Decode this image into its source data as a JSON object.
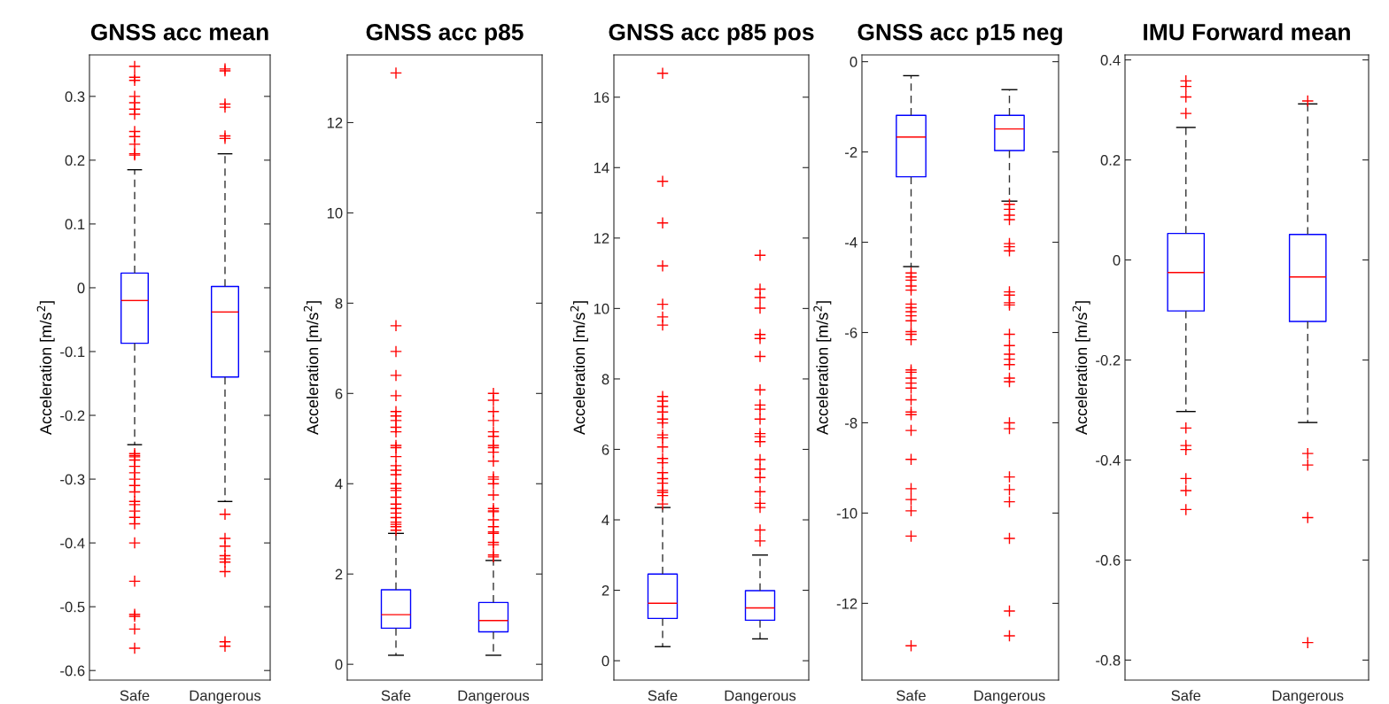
{
  "chart_data": [
    {
      "type": "box",
      "title": "GNSS acc mean",
      "ylabel": "Acceleration [m/s$^{2}$]",
      "categories": [
        "Safe",
        "Dangerous"
      ],
      "ylim": [
        -0.615,
        0.365
      ],
      "yticks": [
        -0.6,
        -0.5,
        -0.4,
        -0.3,
        -0.2,
        -0.1,
        0,
        0.1,
        0.2,
        0.3
      ],
      "marker": "cross",
      "series": [
        {
          "color": "#0000ff",
          "boxes": [
            {
              "low": -0.246,
              "q1": -0.087,
              "median": -0.02,
              "q3": 0.023,
              "high": 0.185,
              "outliers": [
                0.347,
                0.33,
                0.325,
                0.3,
                0.29,
                0.28,
                0.272,
                0.245,
                0.237,
                0.225,
                0.21,
                0.208,
                -0.26,
                -0.263,
                -0.265,
                -0.27,
                -0.28,
                -0.29,
                -0.3,
                -0.31,
                -0.32,
                -0.335,
                -0.34,
                -0.35,
                -0.36,
                -0.37,
                -0.4,
                -0.46,
                -0.512,
                -0.515,
                -0.535,
                -0.565
              ]
            },
            {
              "low": -0.335,
              "q1": -0.14,
              "median": -0.038,
              "q3": 0.002,
              "high": 0.21,
              "outliers": [
                0.343,
                0.34,
                0.288,
                0.283,
                0.238,
                0.234,
                -0.355,
                -0.393,
                -0.405,
                -0.42,
                -0.425,
                -0.43,
                -0.445,
                -0.555,
                -0.562
              ]
            }
          ]
        }
      ]
    },
    {
      "type": "box",
      "title": "GNSS acc p85",
      "ylabel": "Acceleration [m/s$^{2}$]",
      "categories": [
        "Safe",
        "Dangerous"
      ],
      "ylim": [
        -0.35,
        13.5
      ],
      "yticks": [
        0,
        2,
        4,
        6,
        8,
        10,
        12
      ],
      "marker": "cross",
      "series": [
        {
          "color": "#0000ff",
          "boxes": [
            {
              "low": 0.2,
              "q1": 0.8,
              "median": 1.1,
              "q3": 1.65,
              "high": 2.9,
              "outliers": [
                13.1,
                7.5,
                6.93,
                6.4,
                5.95,
                5.6,
                5.5,
                5.4,
                5.25,
                5.15,
                4.85,
                4.8,
                4.6,
                4.4,
                4.3,
                4.2,
                4.0,
                3.9,
                3.85,
                3.7,
                3.55,
                3.45,
                3.35,
                3.25,
                3.15,
                3.1,
                3.05,
                2.97
              ]
            },
            {
              "low": 0.2,
              "q1": 0.72,
              "median": 0.97,
              "q3": 1.37,
              "high": 2.3,
              "outliers": [
                6.0,
                5.85,
                5.6,
                5.4,
                5.15,
                5.05,
                4.85,
                4.8,
                4.7,
                4.5,
                4.15,
                4.1,
                4.0,
                3.75,
                3.45,
                3.4,
                3.38,
                3.2,
                3.05,
                2.93,
                2.9,
                2.7,
                2.65,
                2.42,
                2.38
              ]
            }
          ]
        }
      ]
    },
    {
      "type": "box",
      "title": "GNSS acc p85 pos",
      "ylabel": "Acceleration [m/s$^{2}$]",
      "categories": [
        "Safe",
        "Dangerous"
      ],
      "ylim": [
        -0.55,
        17.2
      ],
      "yticks": [
        0,
        2,
        4,
        6,
        8,
        10,
        12,
        14,
        16
      ],
      "marker": "cross",
      "series": [
        {
          "color": "#0000ff",
          "boxes": [
            {
              "low": 0.4,
              "q1": 1.2,
              "median": 1.63,
              "q3": 2.46,
              "high": 4.35,
              "outliers": [
                16.68,
                13.61,
                12.43,
                11.21,
                10.12,
                9.76,
                9.53,
                7.5,
                7.37,
                7.22,
                7.06,
                6.86,
                6.75,
                6.41,
                6.33,
                6.07,
                5.74,
                5.62,
                5.34,
                5.17,
                5.04,
                4.84,
                4.78,
                4.69,
                4.45
              ]
            },
            {
              "low": 0.62,
              "q1": 1.15,
              "median": 1.5,
              "q3": 1.99,
              "high": 3.0,
              "outliers": [
                11.51,
                10.55,
                10.31,
                10.01,
                9.26,
                9.15,
                8.64,
                7.69,
                7.26,
                7.14,
                6.86,
                6.45,
                6.36,
                6.22,
                5.71,
                5.44,
                5.2,
                4.8,
                4.47,
                4.35,
                3.71,
                3.4
              ]
            }
          ]
        }
      ]
    },
    {
      "type": "box",
      "title": "GNSS acc p15 neg",
      "ylabel": "Acceleration [m/s$^{2}$]",
      "categories": [
        "Safe",
        "Dangerous"
      ],
      "ylim": [
        -13.7,
        0.15
      ],
      "yticks": [
        -12,
        -10,
        -8,
        -6,
        -4,
        -2,
        0
      ],
      "marker": "cross",
      "series": [
        {
          "color": "#0000ff",
          "boxes": [
            {
              "low": -4.54,
              "q1": -2.55,
              "median": -1.67,
              "q3": -1.19,
              "high": -0.31,
              "outliers": [
                -4.68,
                -4.77,
                -4.84,
                -4.97,
                -5.06,
                -5.37,
                -5.45,
                -5.54,
                -5.63,
                -5.74,
                -5.98,
                -6.04,
                -6.16,
                -6.83,
                -6.88,
                -7.01,
                -7.12,
                -7.23,
                -7.49,
                -7.76,
                -7.82,
                -8.17,
                -8.81,
                -9.46,
                -9.7,
                -9.95,
                -10.51,
                -12.94
              ]
            },
            {
              "low": -3.09,
              "q1": -1.97,
              "median": -1.49,
              "q3": -1.19,
              "high": -0.62,
              "outliers": [
                -3.16,
                -3.27,
                -3.4,
                -3.5,
                -4.03,
                -4.1,
                -4.19,
                -5.1,
                -5.17,
                -5.34,
                -5.39,
                -6.04,
                -6.29,
                -6.48,
                -6.59,
                -6.71,
                -7.01,
                -7.09,
                -8.0,
                -8.13,
                -9.2,
                -9.48,
                -9.75,
                -10.56,
                -12.17,
                -12.72
              ]
            }
          ]
        }
      ]
    },
    {
      "type": "box",
      "title": "IMU Forward mean",
      "ylabel": "Acceleration [m/s$^{2}$]",
      "categories": [
        "Safe",
        "Dangerous"
      ],
      "ylim": [
        -0.84,
        0.41
      ],
      "yticks": [
        -0.8,
        -0.6,
        -0.4,
        -0.2,
        0,
        0.2,
        0.4
      ],
      "marker": "cross",
      "series": [
        {
          "color": "#0000ff",
          "boxes": [
            {
              "low": -0.303,
              "q1": -0.102,
              "median": -0.025,
              "q3": 0.053,
              "high": 0.265,
              "outliers": [
                0.358,
                0.347,
                0.326,
                0.293,
                -0.336,
                -0.371,
                -0.379,
                -0.437,
                -0.461,
                -0.499
              ]
            },
            {
              "low": -0.325,
              "q1": -0.123,
              "median": -0.034,
              "q3": 0.051,
              "high": 0.312,
              "outliers": [
                0.318,
                -0.387,
                -0.41,
                -0.515,
                -0.765
              ]
            }
          ]
        }
      ]
    }
  ]
}
